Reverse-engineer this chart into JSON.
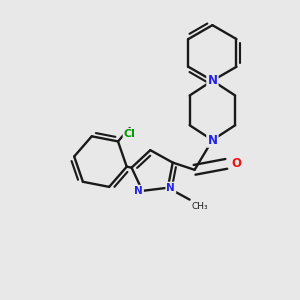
{
  "background_color": "#e8e8e8",
  "bond_color": "#1a1a1a",
  "nitrogen_color": "#2222ee",
  "oxygen_color": "#ee1111",
  "chlorine_color": "#009900",
  "line_width": 1.7,
  "dbo": 0.012,
  "figsize": [
    3.0,
    3.0
  ],
  "dpi": 100,
  "xlim": [
    0,
    300
  ],
  "ylim": [
    0,
    300
  ]
}
